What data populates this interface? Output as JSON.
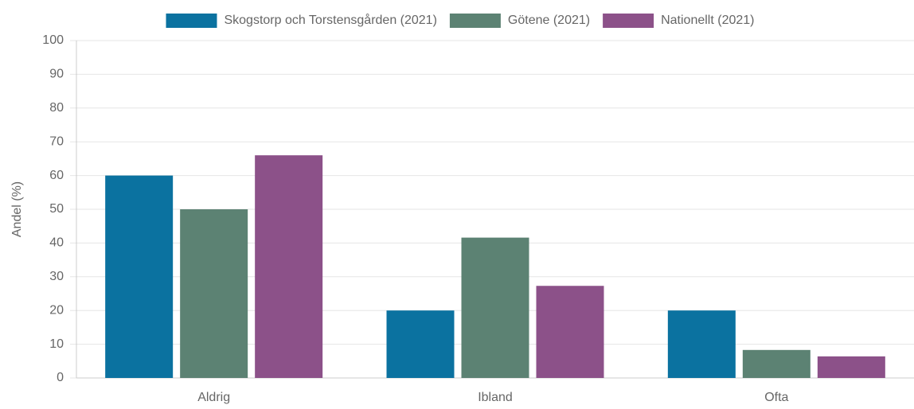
{
  "chart_data": {
    "type": "bar",
    "categories": [
      "Aldrig",
      "Ibland",
      "Ofta"
    ],
    "series": [
      {
        "name": "Skogstorp och Torstensgården (2021)",
        "color": "#0b72a0",
        "values": [
          60,
          20,
          20
        ]
      },
      {
        "name": "Götene (2021)",
        "color": "#5c8273",
        "values": [
          50,
          41.6,
          8.3
        ]
      },
      {
        "name": "Nationellt (2021)",
        "color": "#8c5189",
        "values": [
          66,
          27.3,
          6.4
        ]
      }
    ],
    "y_label": "Andel (%)",
    "ylim": [
      0,
      100
    ],
    "yticks": [
      0,
      10,
      20,
      30,
      40,
      50,
      60,
      70,
      80,
      90,
      100
    ],
    "grid": true,
    "legend": "top"
  }
}
